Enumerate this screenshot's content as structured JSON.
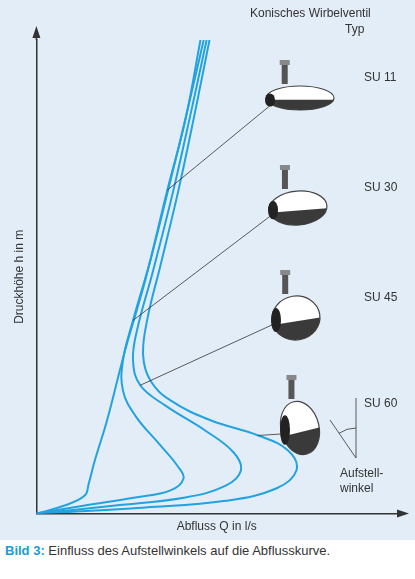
{
  "chart_data": {
    "type": "line",
    "legend_title": [
      "Konisches Wirbelventil",
      "Typ"
    ],
    "x_label": "Abfluss Q in l/s",
    "y_label": "Druckhöhe h in m",
    "xlim": [
      0,
      100
    ],
    "ylim": [
      0,
      100
    ],
    "tick_labels": false,
    "grid": false,
    "series": [
      {
        "name": "SU 11",
        "color": "#22a3df",
        "x": [
          0,
          7.8,
          13.4,
          14.5,
          16.2,
          19.6,
          24.6,
          30.2,
          36.3,
          41.3,
          45.5
        ],
        "values": [
          0,
          1.7,
          3.8,
          6.3,
          11.2,
          19.7,
          34.5,
          49.3,
          68.3,
          83.1,
          100
        ]
      },
      {
        "name": "SU 30",
        "color": "#22a3df",
        "x": [
          0,
          13.4,
          27.4,
          37.2,
          40.8,
          39.1,
          34.4,
          27.4,
          24.0,
          24.0,
          26.8,
          31.6,
          37.2,
          41.9,
          46.4
        ],
        "values": [
          0,
          1.7,
          3.4,
          4.9,
          7.4,
          10.1,
          14.4,
          20.7,
          26.0,
          32.3,
          40.8,
          53.5,
          70.4,
          85.2,
          100
        ]
      },
      {
        "name": "SU 45",
        "color": "#22a3df",
        "x": [
          0,
          21.8,
          41.3,
          52.5,
          56.7,
          54.7,
          46.9,
          35.8,
          28.8,
          26.8,
          27.9,
          32.4,
          38.0,
          43.0,
          47.2
        ],
        "values": [
          0,
          1.7,
          3.4,
          5.9,
          9.1,
          12.9,
          17.5,
          22.8,
          27.1,
          32.3,
          38.7,
          51.4,
          68.3,
          85.2,
          100
        ]
      },
      {
        "name": "SU 60",
        "color": "#22a3df",
        "x": [
          0,
          30.2,
          52.5,
          66.5,
          72.1,
          69.8,
          61.5,
          48.3,
          37.2,
          31.6,
          29.6,
          30.7,
          34.4,
          39.4,
          44.1,
          48.0
        ],
        "values": [
          0,
          1.3,
          2.7,
          5.3,
          9.1,
          13.3,
          16.5,
          19.7,
          23.9,
          28.1,
          33.4,
          40.8,
          52.4,
          68.3,
          85.2,
          100
        ]
      }
    ],
    "annotations": [
      {
        "text": [
          "Aufstell-",
          "winkel"
        ]
      }
    ],
    "caption": {
      "label": "Bild 3:",
      "text": "Einfluss des Aufstellwinkels auf die Abflusskurve."
    }
  }
}
